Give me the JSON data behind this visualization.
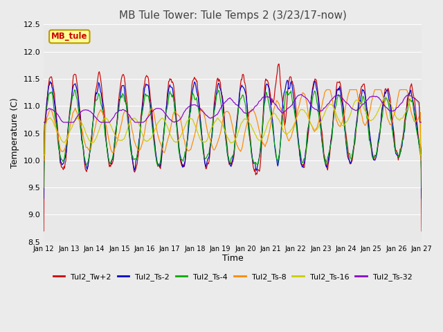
{
  "title": "MB Tule Tower: Tule Temps 2 (3/23/17-now)",
  "xlabel": "Time",
  "ylabel": "Temperature (C)",
  "ylim": [
    8.5,
    12.5
  ],
  "background_color": "#ebebeb",
  "plot_bg_color": "#e8e8e8",
  "legend_box_label": "MB_tule",
  "legend_box_color": "#ffff99",
  "legend_box_edge": "#bb9900",
  "series_colors": {
    "Tul2_Tw+2": "#cc0000",
    "Tul2_Ts-2": "#0000cc",
    "Tul2_Ts-4": "#00aa00",
    "Tul2_Ts-8": "#ff8800",
    "Tul2_Ts-16": "#cccc00",
    "Tul2_Ts-32": "#8800cc"
  },
  "xtick_labels": [
    "Jan 12",
    "Jan 13",
    "Jan 14",
    "Jan 15",
    "Jan 16",
    "Jan 17",
    "Jan 18",
    "Jan 19",
    "Jan 20",
    "Jan 21",
    "Jan 22",
    "Jan 23",
    "Jan 24",
    "Jan 25",
    "Jan 26",
    "Jan 27"
  ],
  "ytick_values": [
    8.5,
    9.0,
    9.5,
    10.0,
    10.5,
    11.0,
    11.5,
    12.0,
    12.5
  ],
  "grid_color": "#ffffff",
  "title_color": "#444444"
}
